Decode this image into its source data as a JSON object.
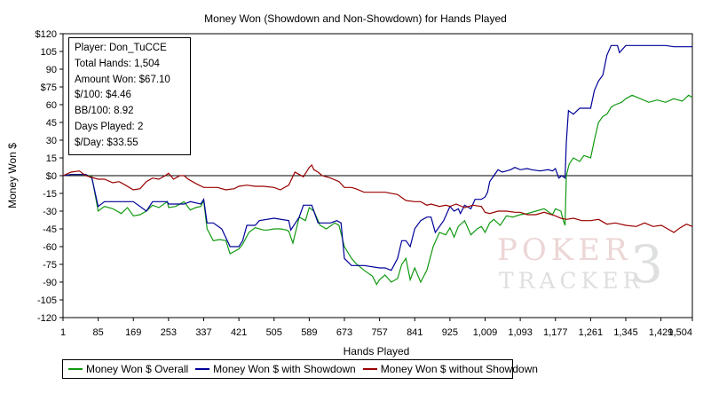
{
  "chart_data": {
    "type": "line",
    "title": "Money Won (Showdown and Non-Showdown) for Hands Played",
    "xlabel": "Hands Played",
    "ylabel": "Money Won $",
    "xlim": [
      1,
      1504
    ],
    "ylim": [
      -120,
      120
    ],
    "x_ticks": [
      1,
      85,
      169,
      253,
      337,
      421,
      505,
      589,
      673,
      757,
      841,
      925,
      1009,
      1093,
      1177,
      1261,
      1345,
      1429,
      1504
    ],
    "x_tick_labels": [
      "1",
      "85",
      "169",
      "253",
      "337",
      "421",
      "505",
      "589",
      "673",
      "757",
      "841",
      "925",
      "1,009",
      "1,093",
      "1,177",
      "1,261",
      "1,345",
      "1,429",
      "1,504"
    ],
    "y_ticks": [
      120,
      105,
      90,
      75,
      60,
      45,
      30,
      15,
      0,
      -15,
      -30,
      -45,
      -60,
      -75,
      -90,
      -105,
      -120
    ],
    "y_tick_labels": [
      "$120",
      "105",
      "90",
      "$75",
      "60",
      "45",
      "30",
      "15",
      "$0",
      "-15",
      "-30",
      "-45",
      "-60",
      "-75",
      "-90",
      "-105",
      "-120"
    ],
    "grid": false,
    "zero_line": true,
    "legend_position": "bottom",
    "series": [
      {
        "name": "Money Won $ Overall",
        "color": "#119911",
        "points": [
          [
            1,
            0
          ],
          [
            20,
            1
          ],
          [
            55,
            1
          ],
          [
            70,
            -1
          ],
          [
            85,
            -30
          ],
          [
            100,
            -26
          ],
          [
            120,
            -28
          ],
          [
            140,
            -32
          ],
          [
            155,
            -27
          ],
          [
            169,
            -34
          ],
          [
            185,
            -33
          ],
          [
            200,
            -30
          ],
          [
            215,
            -25
          ],
          [
            230,
            -27
          ],
          [
            250,
            -22
          ],
          [
            253,
            -27
          ],
          [
            270,
            -26
          ],
          [
            290,
            -22
          ],
          [
            305,
            -29
          ],
          [
            318,
            -27
          ],
          [
            330,
            -26
          ],
          [
            337,
            -21
          ],
          [
            345,
            -45
          ],
          [
            360,
            -55
          ],
          [
            375,
            -54
          ],
          [
            390,
            -55
          ],
          [
            400,
            -66
          ],
          [
            421,
            -62
          ],
          [
            430,
            -58
          ],
          [
            445,
            -48
          ],
          [
            460,
            -44
          ],
          [
            480,
            -46
          ],
          [
            490,
            -46
          ],
          [
            505,
            -45
          ],
          [
            520,
            -45
          ],
          [
            535,
            -46
          ],
          [
            540,
            -47
          ],
          [
            550,
            -57
          ],
          [
            565,
            -35
          ],
          [
            580,
            -38
          ],
          [
            589,
            -27
          ],
          [
            600,
            -30
          ],
          [
            615,
            -42
          ],
          [
            630,
            -45
          ],
          [
            650,
            -40
          ],
          [
            660,
            -42
          ],
          [
            673,
            -60
          ],
          [
            690,
            -70
          ],
          [
            700,
            -74
          ],
          [
            720,
            -80
          ],
          [
            740,
            -85
          ],
          [
            750,
            -92
          ],
          [
            757,
            -88
          ],
          [
            770,
            -84
          ],
          [
            785,
            -90
          ],
          [
            800,
            -87
          ],
          [
            810,
            -75
          ],
          [
            820,
            -70
          ],
          [
            830,
            -88
          ],
          [
            841,
            -78
          ],
          [
            855,
            -90
          ],
          [
            870,
            -80
          ],
          [
            885,
            -60
          ],
          [
            900,
            -48
          ],
          [
            915,
            -50
          ],
          [
            925,
            -44
          ],
          [
            935,
            -52
          ],
          [
            945,
            -43
          ],
          [
            960,
            -38
          ],
          [
            975,
            -50
          ],
          [
            990,
            -45
          ],
          [
            1000,
            -43
          ],
          [
            1009,
            -48
          ],
          [
            1020,
            -40
          ],
          [
            1030,
            -37
          ],
          [
            1045,
            -42
          ],
          [
            1060,
            -34
          ],
          [
            1075,
            -35
          ],
          [
            1093,
            -33
          ],
          [
            1110,
            -32
          ],
          [
            1130,
            -30
          ],
          [
            1150,
            -28
          ],
          [
            1170,
            -33
          ],
          [
            1177,
            -28
          ],
          [
            1190,
            -30
          ],
          [
            1195,
            -37
          ],
          [
            1200,
            -42
          ],
          [
            1203,
            0
          ],
          [
            1210,
            10
          ],
          [
            1220,
            15
          ],
          [
            1235,
            12
          ],
          [
            1245,
            17
          ],
          [
            1261,
            15
          ],
          [
            1270,
            30
          ],
          [
            1280,
            45
          ],
          [
            1290,
            50
          ],
          [
            1300,
            52
          ],
          [
            1310,
            58
          ],
          [
            1320,
            60
          ],
          [
            1335,
            62
          ],
          [
            1345,
            65
          ],
          [
            1360,
            68
          ],
          [
            1380,
            65
          ],
          [
            1400,
            62
          ],
          [
            1420,
            64
          ],
          [
            1440,
            62
          ],
          [
            1460,
            65
          ],
          [
            1480,
            63
          ],
          [
            1495,
            68
          ],
          [
            1504,
            66
          ]
        ]
      },
      {
        "name": "Money Won $ with Showdown",
        "color": "#000099",
        "points": [
          [
            1,
            0
          ],
          [
            20,
            1
          ],
          [
            55,
            1
          ],
          [
            70,
            -2
          ],
          [
            85,
            -26
          ],
          [
            100,
            -22
          ],
          [
            169,
            -22
          ],
          [
            185,
            -26
          ],
          [
            200,
            -30
          ],
          [
            215,
            -22
          ],
          [
            250,
            -22
          ],
          [
            253,
            -24
          ],
          [
            270,
            -24
          ],
          [
            290,
            -24
          ],
          [
            305,
            -22
          ],
          [
            330,
            -24
          ],
          [
            337,
            -20
          ],
          [
            345,
            -40
          ],
          [
            360,
            -40
          ],
          [
            380,
            -45
          ],
          [
            400,
            -60
          ],
          [
            421,
            -60
          ],
          [
            430,
            -55
          ],
          [
            440,
            -42
          ],
          [
            460,
            -42
          ],
          [
            470,
            -38
          ],
          [
            505,
            -36
          ],
          [
            540,
            -38
          ],
          [
            545,
            -46
          ],
          [
            565,
            -35
          ],
          [
            575,
            -25
          ],
          [
            595,
            -25
          ],
          [
            600,
            -30
          ],
          [
            610,
            -40
          ],
          [
            640,
            -40
          ],
          [
            655,
            -38
          ],
          [
            665,
            -40
          ],
          [
            673,
            -70
          ],
          [
            690,
            -76
          ],
          [
            700,
            -76
          ],
          [
            720,
            -76
          ],
          [
            757,
            -78
          ],
          [
            770,
            -78
          ],
          [
            785,
            -80
          ],
          [
            800,
            -70
          ],
          [
            810,
            -55
          ],
          [
            820,
            -55
          ],
          [
            830,
            -60
          ],
          [
            841,
            -45
          ],
          [
            855,
            -38
          ],
          [
            870,
            -35
          ],
          [
            880,
            -35
          ],
          [
            890,
            -48
          ],
          [
            910,
            -38
          ],
          [
            925,
            -26
          ],
          [
            935,
            -30
          ],
          [
            945,
            -28
          ],
          [
            950,
            -32
          ],
          [
            960,
            -25
          ],
          [
            975,
            -28
          ],
          [
            985,
            -20
          ],
          [
            1000,
            -20
          ],
          [
            1009,
            -18
          ],
          [
            1015,
            -14
          ],
          [
            1020,
            -5
          ],
          [
            1030,
            0
          ],
          [
            1040,
            5
          ],
          [
            1050,
            3
          ],
          [
            1060,
            4
          ],
          [
            1070,
            5
          ],
          [
            1080,
            7
          ],
          [
            1093,
            5
          ],
          [
            1110,
            6
          ],
          [
            1120,
            5
          ],
          [
            1140,
            4
          ],
          [
            1160,
            5
          ],
          [
            1170,
            4
          ],
          [
            1177,
            6
          ],
          [
            1185,
            -2
          ],
          [
            1192,
            0
          ],
          [
            1200,
            -2
          ],
          [
            1203,
            28
          ],
          [
            1208,
            55
          ],
          [
            1220,
            52
          ],
          [
            1235,
            57
          ],
          [
            1250,
            57
          ],
          [
            1261,
            57
          ],
          [
            1270,
            72
          ],
          [
            1280,
            80
          ],
          [
            1290,
            85
          ],
          [
            1300,
            102
          ],
          [
            1310,
            110
          ],
          [
            1325,
            110
          ],
          [
            1330,
            104
          ],
          [
            1345,
            110
          ],
          [
            1360,
            110
          ],
          [
            1380,
            110
          ],
          [
            1400,
            110
          ],
          [
            1420,
            110
          ],
          [
            1440,
            110
          ],
          [
            1460,
            109
          ],
          [
            1480,
            109
          ],
          [
            1504,
            109
          ]
        ]
      },
      {
        "name": "Money Won $ without Showdown",
        "color": "#990000",
        "points": [
          [
            1,
            0
          ],
          [
            20,
            3
          ],
          [
            40,
            4
          ],
          [
            55,
            0
          ],
          [
            85,
            -3
          ],
          [
            100,
            -3
          ],
          [
            120,
            -6
          ],
          [
            135,
            -5
          ],
          [
            150,
            -8
          ],
          [
            169,
            -12
          ],
          [
            185,
            -11
          ],
          [
            200,
            -5
          ],
          [
            215,
            -2
          ],
          [
            230,
            -3
          ],
          [
            245,
            0
          ],
          [
            253,
            2
          ],
          [
            265,
            -3
          ],
          [
            280,
            0
          ],
          [
            290,
            0
          ],
          [
            300,
            -3
          ],
          [
            310,
            -5
          ],
          [
            320,
            -7
          ],
          [
            337,
            -10
          ],
          [
            350,
            -10
          ],
          [
            370,
            -10
          ],
          [
            390,
            -12
          ],
          [
            410,
            -11
          ],
          [
            421,
            -9
          ],
          [
            440,
            -8
          ],
          [
            460,
            -9
          ],
          [
            480,
            -9
          ],
          [
            505,
            -10
          ],
          [
            520,
            -12
          ],
          [
            540,
            -8
          ],
          [
            555,
            3
          ],
          [
            565,
            1
          ],
          [
            575,
            -1
          ],
          [
            589,
            7
          ],
          [
            595,
            9
          ],
          [
            600,
            5
          ],
          [
            610,
            3
          ],
          [
            620,
            0
          ],
          [
            640,
            -2
          ],
          [
            660,
            -5
          ],
          [
            673,
            -10
          ],
          [
            690,
            -10
          ],
          [
            700,
            -11
          ],
          [
            720,
            -14
          ],
          [
            757,
            -14
          ],
          [
            770,
            -14
          ],
          [
            800,
            -16
          ],
          [
            820,
            -21
          ],
          [
            841,
            -22
          ],
          [
            855,
            -22
          ],
          [
            870,
            -25
          ],
          [
            880,
            -24
          ],
          [
            900,
            -26
          ],
          [
            915,
            -25
          ],
          [
            925,
            -26
          ],
          [
            940,
            -24
          ],
          [
            960,
            -27
          ],
          [
            980,
            -25
          ],
          [
            1000,
            -26
          ],
          [
            1009,
            -31
          ],
          [
            1020,
            -32
          ],
          [
            1040,
            -30
          ],
          [
            1060,
            -30
          ],
          [
            1080,
            -31
          ],
          [
            1093,
            -31
          ],
          [
            1110,
            -33
          ],
          [
            1130,
            -33
          ],
          [
            1150,
            -31
          ],
          [
            1177,
            -34
          ],
          [
            1190,
            -36
          ],
          [
            1203,
            -37
          ],
          [
            1220,
            -36
          ],
          [
            1240,
            -38
          ],
          [
            1261,
            -38
          ],
          [
            1280,
            -37
          ],
          [
            1300,
            -41
          ],
          [
            1320,
            -40
          ],
          [
            1345,
            -42
          ],
          [
            1370,
            -43
          ],
          [
            1390,
            -40
          ],
          [
            1410,
            -43
          ],
          [
            1430,
            -42
          ],
          [
            1445,
            -45
          ],
          [
            1460,
            -48
          ],
          [
            1475,
            -44
          ],
          [
            1490,
            -41
          ],
          [
            1504,
            -43
          ]
        ]
      }
    ]
  },
  "stats_box": {
    "player": "Player: Don_TuCCE",
    "total_hands": "Total Hands: 1,504",
    "amount_won": "Amount Won: $67.10",
    "per100": "$/100: $4.46",
    "bb100": "BB/100: 8.92",
    "days_played": "Days Played: 2",
    "per_day": "$/Day: $33.55"
  },
  "watermark": {
    "top": "POKER",
    "bottom": "TRACKER",
    "mark": "3"
  }
}
